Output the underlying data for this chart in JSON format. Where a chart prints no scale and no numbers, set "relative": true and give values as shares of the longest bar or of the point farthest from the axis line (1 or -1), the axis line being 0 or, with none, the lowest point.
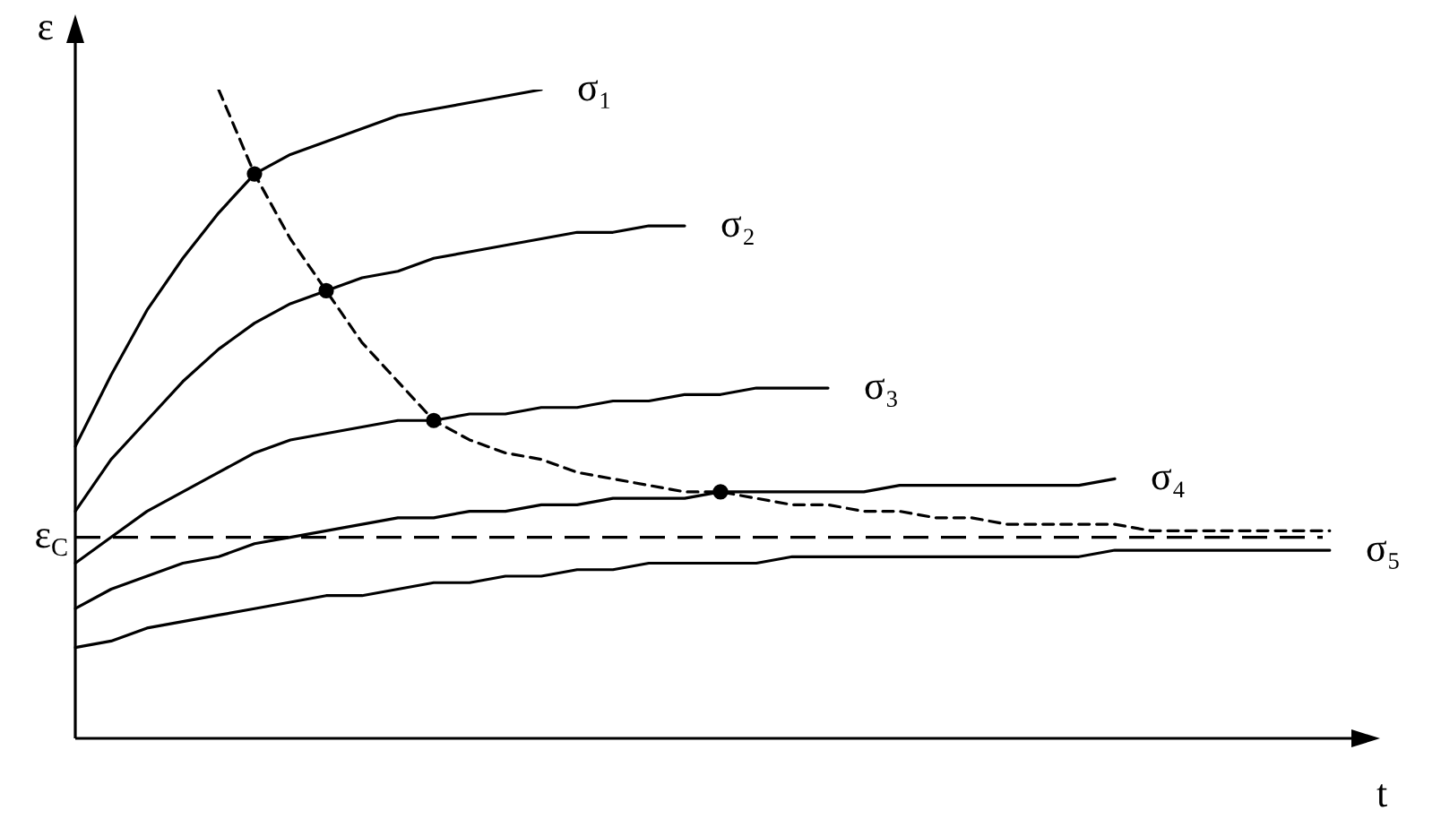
{
  "chart_data": {
    "type": "line",
    "relative": true,
    "xlabel": "t",
    "ylabel": "ε",
    "legend": false,
    "marker": "none",
    "line_style": "solid",
    "categories": [
      null,
      null,
      null,
      null,
      null,
      null,
      null,
      null,
      null,
      null,
      null,
      null,
      null,
      null,
      null,
      null,
      null,
      null,
      null,
      null,
      null,
      null,
      null,
      null,
      null,
      null,
      null,
      null,
      null,
      null,
      null,
      null,
      null,
      null,
      null,
      null
    ],
    "series": [
      {
        "name": "σ₁",
        "color": "#000000",
        "values": [
          0.45,
          0.56,
          0.66,
          0.74,
          0.81,
          0.87,
          0.9,
          0.92,
          0.94,
          0.96,
          0.97,
          0.98,
          0.99,
          1.0,
          null,
          null,
          null,
          null,
          null,
          null,
          null,
          null,
          null,
          null,
          null,
          null,
          null,
          null,
          null,
          null,
          null,
          null,
          null,
          null,
          null,
          null
        ]
      },
      {
        "name": "σ₂",
        "color": "#000000",
        "values": [
          0.35,
          0.43,
          0.49,
          0.55,
          0.6,
          0.64,
          0.67,
          0.69,
          0.71,
          0.72,
          0.74,
          0.75,
          0.76,
          0.77,
          0.78,
          0.78,
          0.79,
          0.79,
          null,
          null,
          null,
          null,
          null,
          null,
          null,
          null,
          null,
          null,
          null,
          null,
          null,
          null,
          null,
          null,
          null,
          null
        ]
      },
      {
        "name": "σ₃",
        "color": "#000000",
        "values": [
          0.27,
          0.31,
          0.35,
          0.38,
          0.41,
          0.44,
          0.46,
          0.47,
          0.48,
          0.49,
          0.49,
          0.5,
          0.5,
          0.51,
          0.51,
          0.52,
          0.52,
          0.53,
          0.53,
          0.54,
          0.54,
          0.54,
          null,
          null,
          null,
          null,
          null,
          null,
          null,
          null,
          null,
          null,
          null,
          null,
          null,
          null
        ]
      },
      {
        "name": "σ₄",
        "color": "#000000",
        "values": [
          0.2,
          0.23,
          0.25,
          0.27,
          0.28,
          0.3,
          0.31,
          0.32,
          0.33,
          0.34,
          0.34,
          0.35,
          0.35,
          0.36,
          0.36,
          0.37,
          0.37,
          0.37,
          0.38,
          0.38,
          0.38,
          0.38,
          0.38,
          0.39,
          0.39,
          0.39,
          0.39,
          0.39,
          0.39,
          0.4,
          null,
          null,
          null,
          null,
          null,
          null
        ]
      },
      {
        "name": "σ₅",
        "color": "#000000",
        "values": [
          0.14,
          0.15,
          0.17,
          0.18,
          0.19,
          0.2,
          0.21,
          0.22,
          0.22,
          0.23,
          0.24,
          0.24,
          0.25,
          0.25,
          0.26,
          0.26,
          0.27,
          0.27,
          0.27,
          0.27,
          0.28,
          0.28,
          0.28,
          0.28,
          0.28,
          0.28,
          0.28,
          0.28,
          0.28,
          0.29,
          0.29,
          0.29,
          0.29,
          0.29,
          0.29,
          0.29
        ]
      },
      {
        "color": "#000000",
        "line_style": "dashed",
        "values": [
          null,
          null,
          null,
          null,
          1.0,
          0.87,
          0.77,
          0.69,
          0.61,
          0.55,
          0.49,
          0.46,
          0.44,
          0.43,
          0.41,
          0.4,
          0.39,
          0.38,
          0.38,
          0.37,
          0.36,
          0.36,
          0.35,
          0.35,
          0.34,
          0.34,
          0.33,
          0.33,
          0.33,
          0.33,
          0.32,
          0.32,
          0.32,
          0.32,
          0.32,
          0.32
        ]
      }
    ],
    "ref_lines": [
      {
        "axis": "y",
        "value": 0.31,
        "label": "ε$_{C}$",
        "color": "#000000",
        "line_style": "dashed"
      }
    ]
  }
}
